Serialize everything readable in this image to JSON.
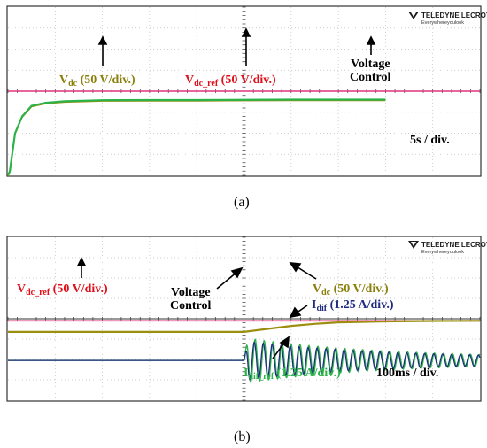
{
  "brand": {
    "name": "TELEDYNE LECROY",
    "tagline": "Everywhereyoulook"
  },
  "colors": {
    "pink": "#e0337a",
    "olive": "#9c8f10",
    "green": "#2bb34a",
    "navy": "#1f2a80",
    "red": "#e0101a",
    "text_olive": "#8a7f0a",
    "grid": "#bdbdbd",
    "axis": "#333333"
  },
  "chart_data": [
    {
      "type": "line",
      "panel": "a",
      "caption": "(a)",
      "time_scale": "5s / div.",
      "divisions": {
        "x": 10,
        "y": 8
      },
      "series": [
        {
          "name": "Vdc_ref",
          "trace": [
            [
              0,
              4.0
            ],
            [
              10,
              4.0
            ]
          ]
        },
        {
          "name": "Vdc",
          "trace": [
            [
              0,
              0.0
            ],
            [
              0.04,
              0.2
            ],
            [
              0.15,
              2.0
            ],
            [
              0.3,
              2.8
            ],
            [
              0.5,
              3.3
            ],
            [
              0.8,
              3.45
            ],
            [
              1.2,
              3.52
            ],
            [
              2,
              3.57
            ],
            [
              3,
              3.58
            ],
            [
              4,
              3.58
            ],
            [
              6,
              3.6
            ],
            [
              8,
              3.6
            ],
            [
              10.2,
              3.62
            ],
            [
              10.3,
              3.78
            ],
            [
              10.4,
              3.9
            ],
            [
              10.6,
              3.97
            ],
            [
              11,
              4.0
            ],
            [
              12,
              4.0
            ]
          ]
        }
      ],
      "annotations": [
        {
          "text": "V",
          "sub": "dc",
          "rest": " (50 V/div.)",
          "color": "olive"
        },
        {
          "text": "V",
          "sub": "dc_ref",
          "rest": " (50 V/div.)",
          "color": "red"
        },
        {
          "text": "Voltage",
          "text2": "Control",
          "color": "black"
        }
      ]
    },
    {
      "type": "line",
      "panel": "b",
      "caption": "(b)",
      "time_scale": "100ms / div.",
      "divisions": {
        "x": 10,
        "y": 8
      },
      "series": [
        {
          "name": "Vdc_ref",
          "trace": [
            [
              0,
              3.9
            ],
            [
              10,
              3.9
            ]
          ]
        },
        {
          "name": "Vdc",
          "trace": [
            [
              0,
              3.35
            ],
            [
              5,
              3.35
            ],
            [
              5.5,
              3.5
            ],
            [
              6,
              3.65
            ],
            [
              6.5,
              3.75
            ],
            [
              7,
              3.82
            ],
            [
              8,
              3.87
            ],
            [
              9,
              3.89
            ],
            [
              10,
              3.9
            ]
          ]
        },
        {
          "name": "Idif_ref",
          "trace": [
            [
              0,
              1.95
            ],
            [
              5,
              1.95
            ]
          ],
          "oscillation": {
            "start_div": 5,
            "initial_amplitude_div": 1.0,
            "decay_per_div": 0.35,
            "period_div": 0.19
          }
        },
        {
          "name": "Idif",
          "trace": [
            [
              0,
              1.95
            ],
            [
              5,
              1.95
            ]
          ],
          "oscillation": {
            "start_div": 5,
            "initial_amplitude_div": 0.85,
            "decay_per_div": 0.35,
            "period_div": 0.19
          }
        }
      ],
      "annotations": [
        {
          "text": "V",
          "sub": "dc_ref",
          "rest": " (50 V/div.)",
          "color": "red"
        },
        {
          "text": "Voltage",
          "text2": "Control",
          "color": "black"
        },
        {
          "text": "V",
          "sub": "dc",
          "rest": " (50 V/div.)",
          "color": "olive"
        },
        {
          "text": "I",
          "sub": "dif",
          "rest": " (1.25 A/div.)",
          "color": "navy"
        },
        {
          "text": "I",
          "sub": "dif_ref",
          "rest": " (1.25 A/div.)",
          "color": "green"
        }
      ]
    }
  ]
}
